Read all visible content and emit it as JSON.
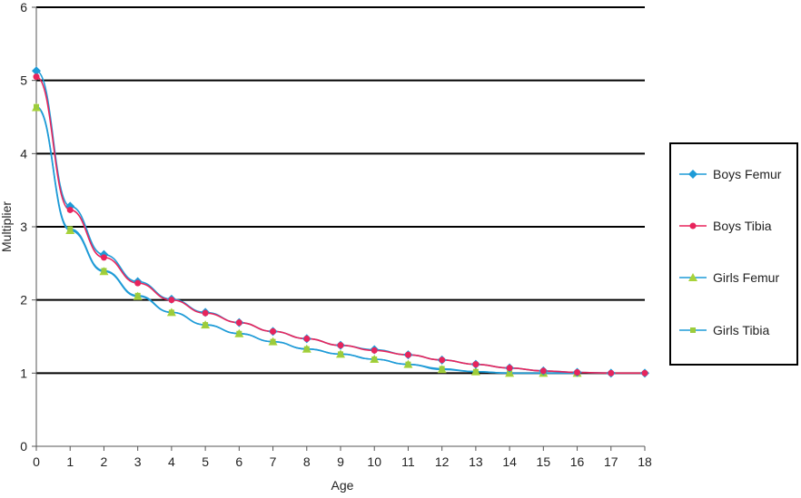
{
  "chart_data": {
    "type": "line",
    "title": "",
    "xlabel": "Age",
    "ylabel": "Multiplier",
    "xlim": [
      0,
      18
    ],
    "ylim": [
      0,
      6
    ],
    "x_ticks": [
      "0",
      "1",
      "2",
      "3",
      "4",
      "5",
      "6",
      "7",
      "8",
      "9",
      "10",
      "11",
      "12",
      "13",
      "14",
      "15",
      "16",
      "17",
      "18"
    ],
    "y_ticks": [
      "0",
      "1",
      "2",
      "3",
      "4",
      "5",
      "6"
    ],
    "grid": "horizontal",
    "legend_position": "right",
    "series": [
      {
        "name": "Boys Femur",
        "color": "#1e9bd7",
        "marker": "diamond",
        "x": [
          0,
          1,
          2,
          3,
          4,
          5,
          6,
          7,
          8,
          9,
          10,
          11,
          12,
          13,
          14,
          15,
          16,
          17,
          18
        ],
        "y": [
          5.13,
          3.28,
          2.62,
          2.25,
          2.01,
          1.83,
          1.69,
          1.57,
          1.47,
          1.38,
          1.32,
          1.25,
          1.18,
          1.12,
          1.07,
          1.03,
          1.01,
          1.0,
          1.0
        ]
      },
      {
        "name": "Boys Tibia",
        "color": "#e8245c",
        "marker": "circle",
        "x": [
          0,
          1,
          2,
          3,
          4,
          5,
          6,
          7,
          8,
          9,
          10,
          11,
          12,
          13,
          14,
          15,
          16,
          17,
          18
        ],
        "y": [
          5.05,
          3.23,
          2.58,
          2.23,
          2.0,
          1.82,
          1.69,
          1.57,
          1.47,
          1.38,
          1.31,
          1.25,
          1.18,
          1.12,
          1.07,
          1.03,
          1.01,
          1.0,
          1.0
        ]
      },
      {
        "name": "Girls Femur",
        "color": "#1e9bd7",
        "marker": "triangle",
        "x": [
          0,
          1,
          2,
          3,
          4,
          5,
          6,
          7,
          8,
          9,
          10,
          11,
          12,
          13,
          14,
          15,
          16
        ],
        "y": [
          4.63,
          2.95,
          2.39,
          2.05,
          1.83,
          1.66,
          1.54,
          1.43,
          1.33,
          1.26,
          1.19,
          1.12,
          1.05,
          1.02,
          1.0,
          1.0,
          1.0
        ]
      },
      {
        "name": "Girls Tibia",
        "color": "#1e9bd7",
        "marker": "square",
        "marker_color": "#9ccc3c",
        "x": [
          0,
          1,
          2,
          3,
          4,
          5,
          6,
          7,
          8,
          9,
          10,
          11,
          12,
          13,
          14,
          15,
          16
        ],
        "y": [
          4.64,
          2.97,
          2.4,
          2.06,
          1.83,
          1.66,
          1.54,
          1.43,
          1.33,
          1.26,
          1.19,
          1.12,
          1.06,
          1.02,
          1.0,
          1.0,
          1.0
        ]
      }
    ]
  },
  "colors": {
    "grid": "#000000",
    "axis": "#555555",
    "legend_border": "#000000",
    "triangle_marker": "#a8d33a"
  }
}
